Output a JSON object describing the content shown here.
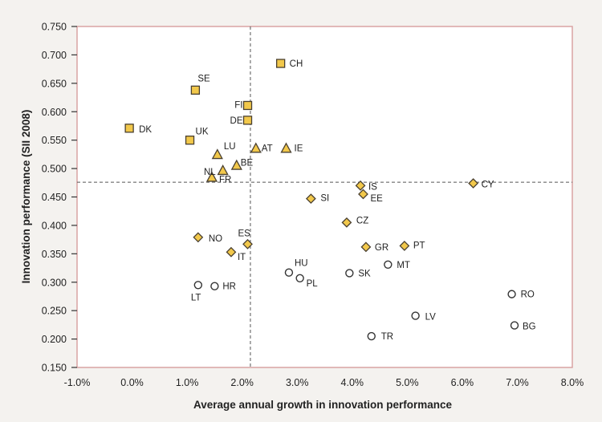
{
  "chart_data": {
    "type": "scatter",
    "title": "",
    "xlabel": "Average annual growth in innovation performance",
    "ylabel": "Innovation performance (SII 2008)",
    "xlim": [
      -0.01,
      0.08
    ],
    "ylim": [
      0.15,
      0.75
    ],
    "x_ticks": [
      -0.01,
      0.0,
      0.01,
      0.02,
      0.03,
      0.04,
      0.05,
      0.06,
      0.07,
      0.08
    ],
    "x_tick_labels": [
      "-1.0%",
      "0.0%",
      "1.0%",
      "2.0%",
      "3.0%",
      "4.0%",
      "5.0%",
      "6.0%",
      "7.0%",
      "8.0%"
    ],
    "y_ticks": [
      0.15,
      0.2,
      0.25,
      0.3,
      0.35,
      0.4,
      0.45,
      0.5,
      0.55,
      0.6,
      0.65,
      0.7,
      0.75
    ],
    "y_tick_labels": [
      "0.150",
      "0.200",
      "0.250",
      "0.300",
      "0.350",
      "0.400",
      "0.450",
      "0.500",
      "0.550",
      "0.600",
      "0.650",
      "0.700",
      "0.750"
    ],
    "reference_lines": {
      "x": 0.0215,
      "y": 0.476
    },
    "colors": {
      "fill": "#f2c84b",
      "stroke": "#4a4030",
      "frame": "#d9a3a3",
      "dashed": "#555555"
    },
    "series": [
      {
        "marker": "square",
        "points": [
          {
            "label": "CH",
            "x": 0.027,
            "y": 0.685
          },
          {
            "label": "SE",
            "x": 0.0115,
            "y": 0.638
          },
          {
            "label": "FI",
            "x": 0.021,
            "y": 0.611
          },
          {
            "label": "DE",
            "x": 0.021,
            "y": 0.585
          },
          {
            "label": "DK",
            "x": -0.0005,
            "y": 0.571
          },
          {
            "label": "UK",
            "x": 0.0105,
            "y": 0.55
          }
        ]
      },
      {
        "marker": "triangle",
        "points": [
          {
            "label": "LU",
            "x": 0.0155,
            "y": 0.524
          },
          {
            "label": "AT",
            "x": 0.0225,
            "y": 0.535
          },
          {
            "label": "IE",
            "x": 0.028,
            "y": 0.535
          },
          {
            "label": "BE",
            "x": 0.019,
            "y": 0.505
          },
          {
            "label": "NL",
            "x": 0.0165,
            "y": 0.496
          },
          {
            "label": "FR",
            "x": 0.0145,
            "y": 0.484
          }
        ]
      },
      {
        "marker": "diamond",
        "points": [
          {
            "label": "IS",
            "x": 0.0415,
            "y": 0.47
          },
          {
            "label": "EE",
            "x": 0.042,
            "y": 0.455
          },
          {
            "label": "CY",
            "x": 0.062,
            "y": 0.474
          },
          {
            "label": "SI",
            "x": 0.0325,
            "y": 0.447
          },
          {
            "label": "CZ",
            "x": 0.039,
            "y": 0.405
          },
          {
            "label": "NO",
            "x": 0.012,
            "y": 0.379
          },
          {
            "label": "ES",
            "x": 0.021,
            "y": 0.367
          },
          {
            "label": "IT",
            "x": 0.018,
            "y": 0.353
          },
          {
            "label": "GR",
            "x": 0.0425,
            "y": 0.362
          },
          {
            "label": "PT",
            "x": 0.0495,
            "y": 0.364
          }
        ]
      },
      {
        "marker": "circle",
        "points": [
          {
            "label": "MT",
            "x": 0.0465,
            "y": 0.331
          },
          {
            "label": "HU",
            "x": 0.0285,
            "y": 0.317
          },
          {
            "label": "SK",
            "x": 0.0395,
            "y": 0.316
          },
          {
            "label": "PL",
            "x": 0.0305,
            "y": 0.307
          },
          {
            "label": "LT",
            "x": 0.012,
            "y": 0.295
          },
          {
            "label": "HR",
            "x": 0.015,
            "y": 0.293
          },
          {
            "label": "RO",
            "x": 0.069,
            "y": 0.279
          },
          {
            "label": "LV",
            "x": 0.0515,
            "y": 0.241
          },
          {
            "label": "BG",
            "x": 0.0695,
            "y": 0.224
          },
          {
            "label": "TR",
            "x": 0.0435,
            "y": 0.205
          }
        ]
      }
    ]
  }
}
